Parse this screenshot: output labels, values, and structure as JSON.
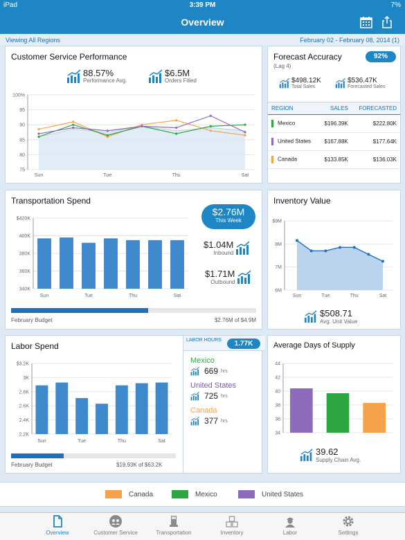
{
  "status": {
    "device": "iPad",
    "time": "3:39 PM",
    "battery": "7%"
  },
  "nav": {
    "title": "Overview"
  },
  "info": {
    "viewing": "Viewing All Regions",
    "date_range": "February 02 - February 08, 2014 (1)"
  },
  "colors": {
    "canada": "#f6a24a",
    "mexico": "#2ca640",
    "united_states": "#8d6aba",
    "accent": "#1f86c6",
    "bar": "#3d89cc"
  },
  "csp": {
    "title": "Customer Service Performance",
    "kpi1_value": "88.57%",
    "kpi1_label": "Performance Avg.",
    "kpi2_value": "$6.5M",
    "kpi2_label": "Orders Filled",
    "chart_data": {
      "type": "line",
      "x": [
        "Sun",
        "Mon",
        "Tue",
        "Wed",
        "Thu",
        "Fri",
        "Sat"
      ],
      "xticks": [
        "Sun",
        "Tue",
        "Thu",
        "Sat"
      ],
      "yticks": [
        "100%",
        "95",
        "90",
        "85",
        "80",
        "75"
      ],
      "ylim": [
        75,
        100
      ],
      "series": [
        {
          "name": "Canada",
          "values": [
            88.5,
            91,
            86,
            90,
            91.5,
            88,
            86.5
          ]
        },
        {
          "name": "Mexico",
          "values": [
            86,
            90,
            86.5,
            89.5,
            87,
            89.5,
            90
          ]
        },
        {
          "name": "United States",
          "values": [
            87,
            89,
            88,
            89.5,
            89,
            93,
            87.5
          ]
        },
        {
          "name": "Average",
          "values": [
            86,
            88.5,
            87.5,
            89.5,
            88,
            89,
            88
          ],
          "area": true
        }
      ]
    }
  },
  "forecast": {
    "title": "Forecast Accuracy",
    "subtitle": "(Lag 4)",
    "badge": "92%",
    "total_sales": "$498.12K",
    "total_sales_label": "Total Sales",
    "forecasted_sales": "$536.47K",
    "forecasted_sales_label": "Forecasted Sales",
    "headers": [
      "REGION",
      "SALES",
      "FORECASTED"
    ],
    "rows": [
      {
        "region": "Mexico",
        "sales": "$196.39K",
        "forecasted": "$222.80K"
      },
      {
        "region": "United States",
        "sales": "$167.88K",
        "forecasted": "$177.64K"
      },
      {
        "region": "Canada",
        "sales": "$133.85K",
        "forecasted": "$136.03K"
      }
    ]
  },
  "transport": {
    "title": "Transportation Spend",
    "badge_value": "$2.76M",
    "badge_label": "This Week",
    "inbound_value": "$1.04M",
    "inbound_label": "Inbound",
    "outbound_value": "$1.71M",
    "outbound_label": "Outbound",
    "budget_label": "February Budget",
    "budget_value": "$2.76M of $4.9M",
    "budget_fraction": 0.56,
    "chart_data": {
      "type": "bar",
      "categories": [
        "Sun",
        "Mon",
        "Tue",
        "Wed",
        "Thu",
        "Fri",
        "Sat"
      ],
      "xticks": [
        "Sun",
        "Tue",
        "Thu",
        "Sat"
      ],
      "yticks": [
        "$420K",
        "400K",
        "380K",
        "360K",
        "340K"
      ],
      "ylim": [
        340,
        420
      ],
      "values": [
        397,
        398,
        392,
        397,
        395,
        395,
        395
      ]
    }
  },
  "inventory": {
    "title": "Inventory Value",
    "avg_value": "$508.71",
    "avg_label": "Avg. Unit Value",
    "chart_data": {
      "type": "area",
      "x": [
        "Sun",
        "Mon",
        "Tue",
        "Wed",
        "Thu",
        "Fri",
        "Sat"
      ],
      "xticks": [
        "Sun",
        "Tue",
        "Thu",
        "Sat"
      ],
      "yticks": [
        "$9M",
        "8M",
        "7M",
        "6M"
      ],
      "ylim": [
        6,
        9
      ],
      "values": [
        8.15,
        7.7,
        7.7,
        7.85,
        7.85,
        7.55,
        7.25
      ]
    }
  },
  "labor": {
    "title": "Labor Spend",
    "hours_header": "LABOR HOURS",
    "hours_badge": "1.77K",
    "mexico_label": "Mexico",
    "mexico_hours": "669",
    "us_label": "United States",
    "us_hours": "725",
    "canada_label": "Canada",
    "canada_hours": "377",
    "hrs_unit": "hrs",
    "budget_label": "February Budget",
    "budget_value": "$19.93K of $63.2K",
    "budget_fraction": 0.32,
    "chart_data": {
      "type": "bar",
      "categories": [
        "Sun",
        "Mon",
        "Tue",
        "Wed",
        "Thu",
        "Fri",
        "Sat"
      ],
      "xticks": [
        "Sun",
        "Tue",
        "Thu",
        "Sat"
      ],
      "yticks": [
        "$3.2K",
        "3K",
        "2.8K",
        "2.6K",
        "2.4K",
        "2.2K"
      ],
      "ylim": [
        2.2,
        3.2
      ],
      "values": [
        2.89,
        2.93,
        2.71,
        2.63,
        2.89,
        2.92,
        2.93
      ]
    }
  },
  "supply": {
    "title": "Average Days of Supply",
    "avg_value": "39.62",
    "avg_label": "Supply Chain Avg.",
    "chart_data": {
      "type": "bar",
      "categories": [
        "United States",
        "Mexico",
        "Canada"
      ],
      "yticks": [
        "44",
        "42",
        "40",
        "38",
        "36",
        "34"
      ],
      "ylim": [
        34,
        44
      ],
      "values": [
        40.4,
        39.7,
        38.3
      ]
    }
  },
  "legend": [
    "Canada",
    "Mexico",
    "United States"
  ],
  "tabs": [
    "Overview",
    "Customer Service",
    "Transportation",
    "Inventory",
    "Labor",
    "Settings"
  ]
}
